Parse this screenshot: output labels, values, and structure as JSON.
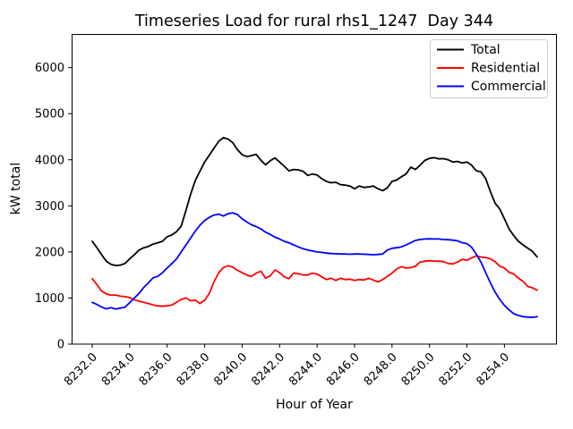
{
  "figure": {
    "background": "#ffffff"
  },
  "chart_data": {
    "type": "line",
    "title": "Timeseries Load for rural rhs1_1247  Day 344",
    "xlabel": "Hour of Year",
    "ylabel": "kW total",
    "xlim": [
      8230.9,
      8256.8
    ],
    "ylim": [
      0,
      6730
    ],
    "x_ticks": [
      8232,
      8234,
      8236,
      8238,
      8240,
      8242,
      8244,
      8246,
      8248,
      8250,
      8252,
      8254
    ],
    "x_tick_labels": [
      "8232.0",
      "8234.0",
      "8236.0",
      "8238.0",
      "8240.0",
      "8242.0",
      "8244.0",
      "8246.0",
      "8248.0",
      "8250.0",
      "8252.0",
      "8254.0"
    ],
    "y_ticks": [
      0,
      1000,
      2000,
      3000,
      4000,
      5000,
      6000
    ],
    "y_tick_labels": [
      "0",
      "1000",
      "2000",
      "3000",
      "4000",
      "5000",
      "6000"
    ],
    "grid": false,
    "legend": {
      "position": "upper right"
    },
    "x_start": 8232.0,
    "x_step": 0.25,
    "series": [
      {
        "name": "Total",
        "color": "#000000",
        "values": [
          2230,
          2090,
          1940,
          1800,
          1730,
          1705,
          1715,
          1750,
          1850,
          1940,
          2040,
          2090,
          2120,
          2170,
          2200,
          2230,
          2330,
          2370,
          2440,
          2560,
          2900,
          3250,
          3550,
          3750,
          3950,
          4100,
          4250,
          4400,
          4480,
          4450,
          4370,
          4220,
          4110,
          4070,
          4090,
          4120,
          3990,
          3890,
          3980,
          4040,
          3950,
          3860,
          3760,
          3790,
          3780,
          3750,
          3660,
          3690,
          3670,
          3590,
          3530,
          3500,
          3510,
          3460,
          3450,
          3430,
          3370,
          3430,
          3400,
          3410,
          3430,
          3370,
          3330,
          3390,
          3530,
          3560,
          3630,
          3690,
          3840,
          3790,
          3880,
          3985,
          4030,
          4045,
          4020,
          4025,
          4000,
          3950,
          3965,
          3930,
          3950,
          3880,
          3760,
          3740,
          3590,
          3310,
          3060,
          2930,
          2720,
          2500,
          2350,
          2230,
          2150,
          2080,
          2010,
          1890
        ]
      },
      {
        "name": "Residential",
        "color": "#ff0000",
        "values": [
          1420,
          1290,
          1150,
          1090,
          1060,
          1065,
          1040,
          1030,
          1010,
          960,
          930,
          905,
          880,
          850,
          830,
          820,
          830,
          850,
          905,
          970,
          1000,
          940,
          955,
          880,
          950,
          1100,
          1350,
          1550,
          1660,
          1700,
          1670,
          1600,
          1550,
          1500,
          1470,
          1540,
          1580,
          1430,
          1480,
          1610,
          1550,
          1460,
          1420,
          1540,
          1530,
          1500,
          1500,
          1540,
          1520,
          1460,
          1400,
          1430,
          1380,
          1430,
          1400,
          1410,
          1380,
          1400,
          1390,
          1430,
          1390,
          1350,
          1400,
          1470,
          1540,
          1630,
          1680,
          1650,
          1660,
          1690,
          1780,
          1800,
          1810,
          1800,
          1800,
          1790,
          1750,
          1740,
          1780,
          1840,
          1820,
          1870,
          1915,
          1890,
          1880,
          1850,
          1790,
          1690,
          1650,
          1560,
          1520,
          1430,
          1360,
          1250,
          1220,
          1170
        ]
      },
      {
        "name": "Commercial",
        "color": "#0000ff",
        "values": [
          905,
          860,
          805,
          765,
          790,
          760,
          780,
          800,
          900,
          1000,
          1100,
          1230,
          1330,
          1440,
          1470,
          1550,
          1650,
          1750,
          1850,
          2000,
          2150,
          2300,
          2450,
          2580,
          2680,
          2750,
          2800,
          2820,
          2780,
          2830,
          2850,
          2810,
          2720,
          2650,
          2590,
          2550,
          2500,
          2430,
          2380,
          2320,
          2280,
          2230,
          2200,
          2150,
          2110,
          2070,
          2040,
          2020,
          2000,
          1990,
          1975,
          1965,
          1960,
          1955,
          1955,
          1950,
          1955,
          1955,
          1950,
          1945,
          1940,
          1945,
          1955,
          2040,
          2080,
          2090,
          2110,
          2150,
          2200,
          2250,
          2270,
          2280,
          2285,
          2280,
          2280,
          2270,
          2265,
          2255,
          2240,
          2200,
          2180,
          2100,
          1950,
          1780,
          1550,
          1330,
          1130,
          970,
          840,
          740,
          660,
          620,
          595,
          585,
          580,
          595
        ]
      }
    ]
  }
}
